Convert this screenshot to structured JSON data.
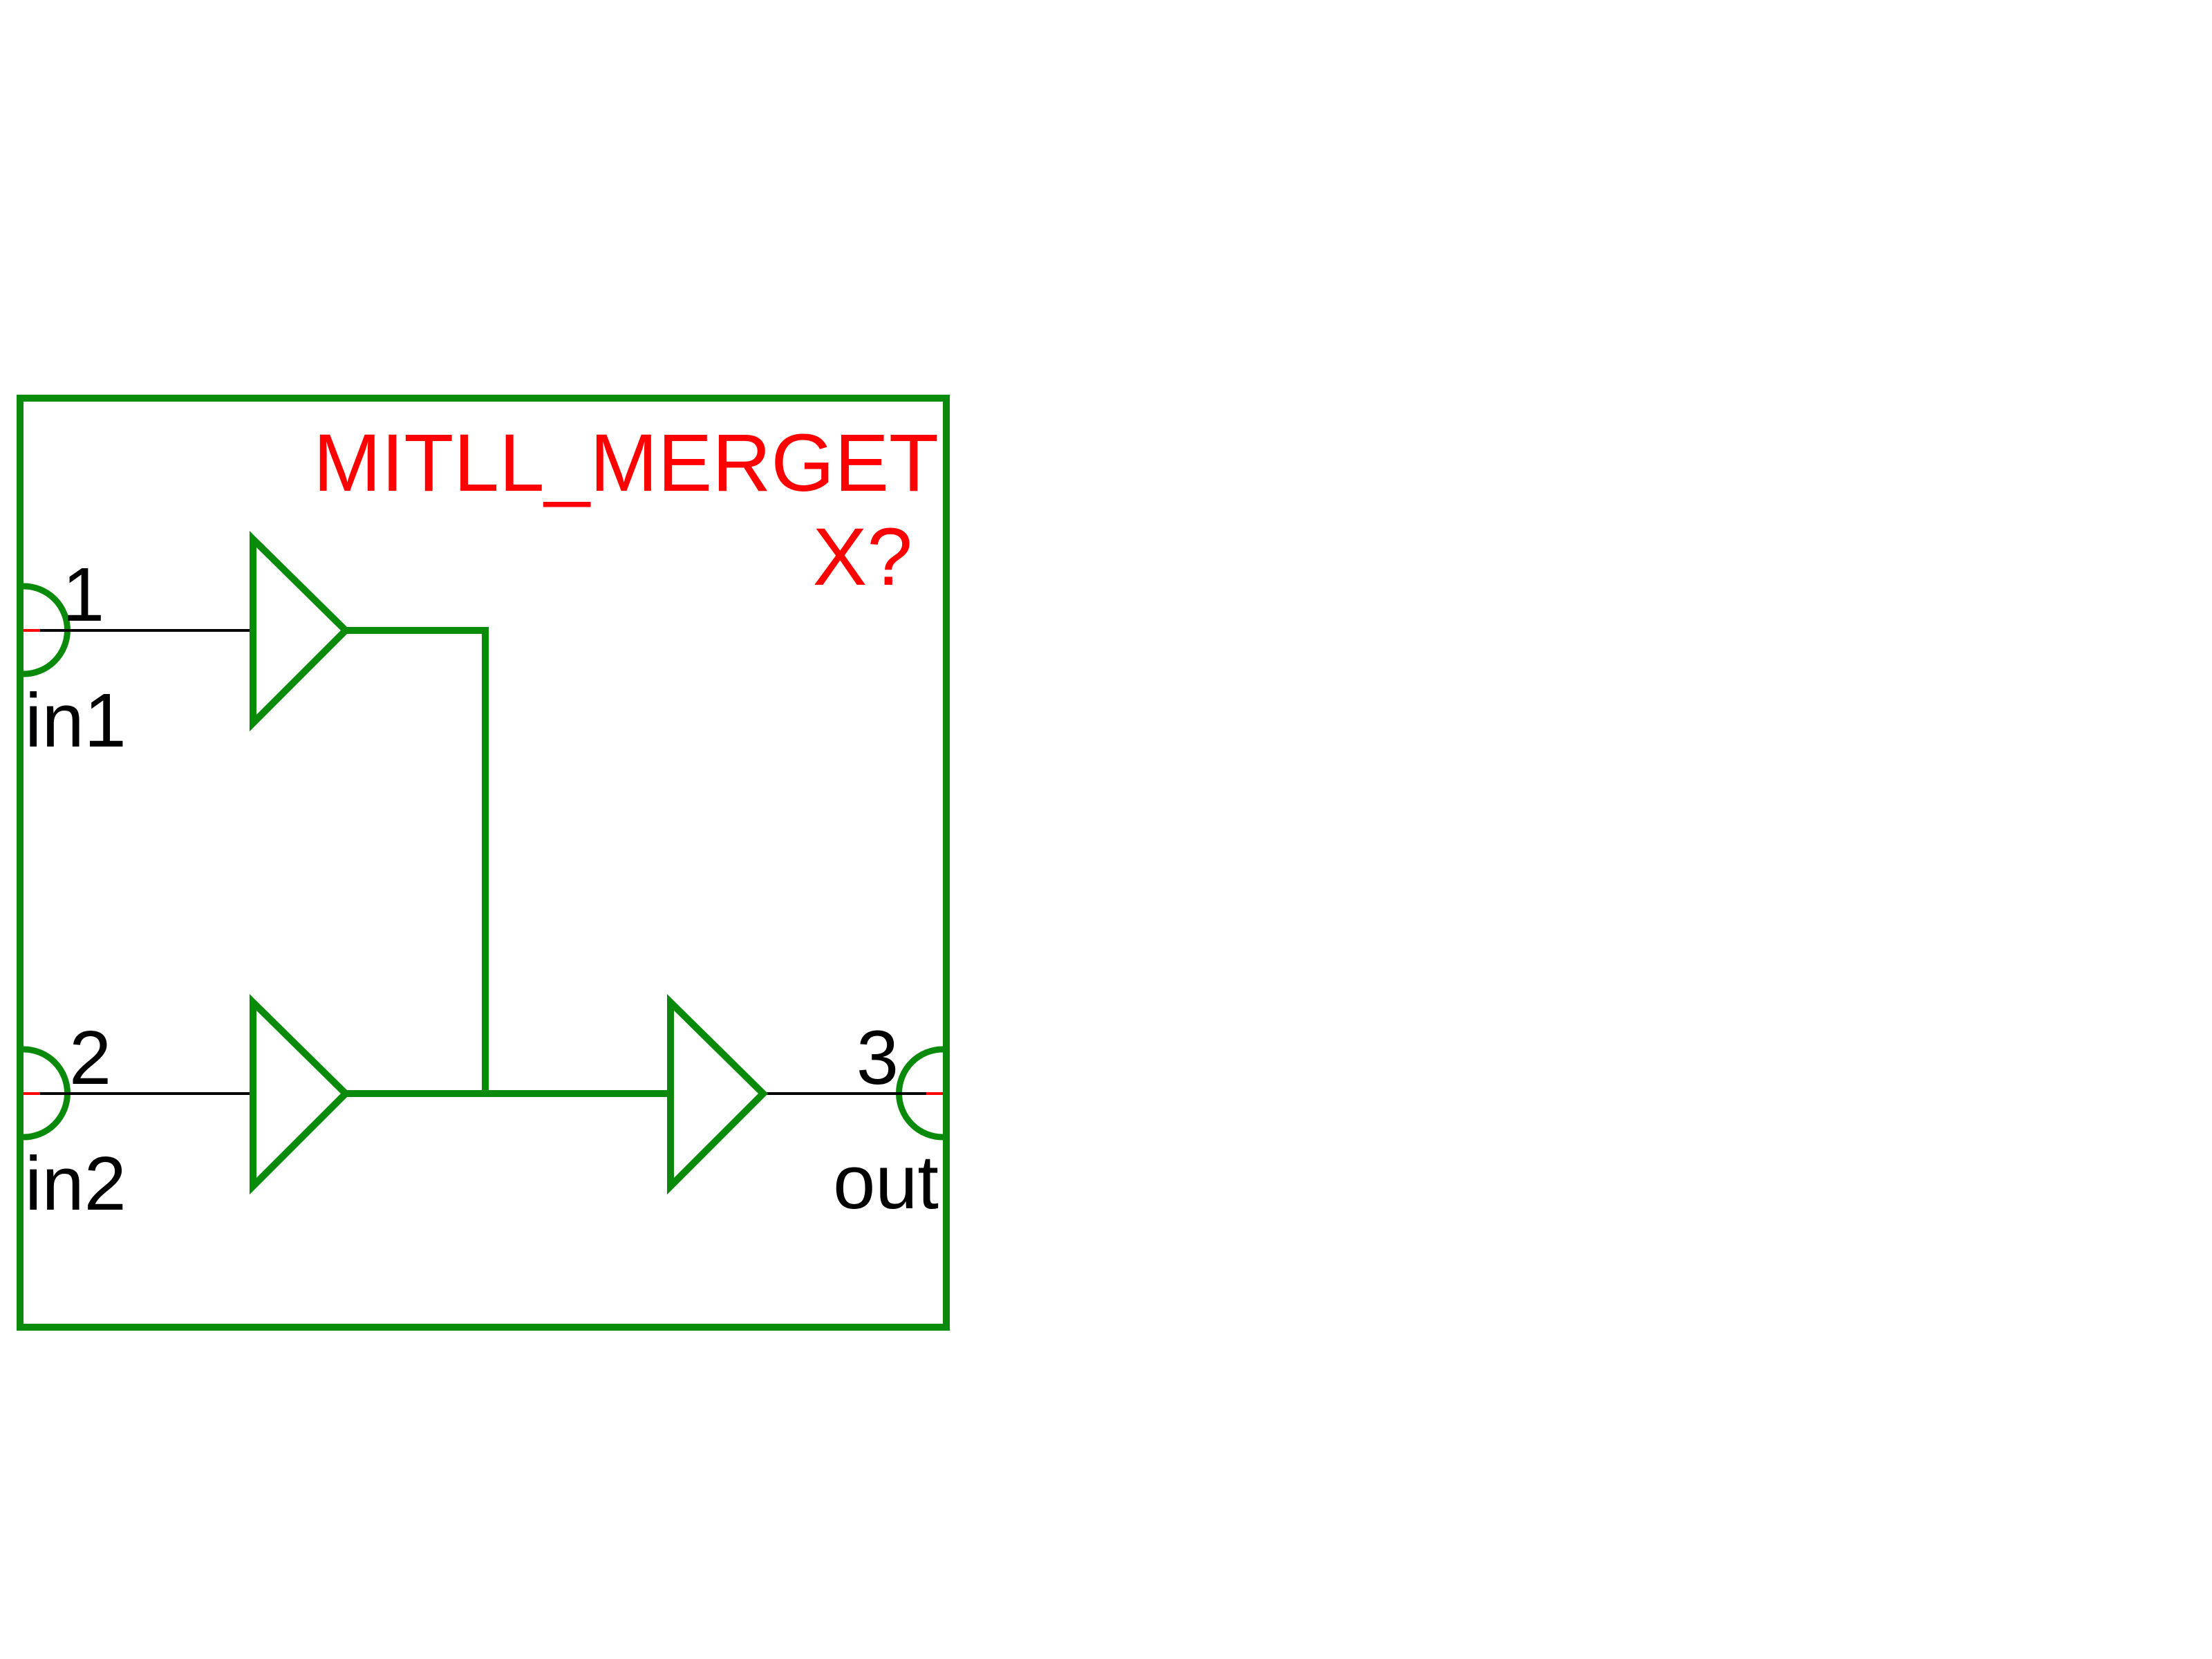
{
  "symbol": {
    "name": "MITLL_MERGET",
    "reference": "X?"
  },
  "pins": [
    {
      "number": "1",
      "name": "in1",
      "side": "left"
    },
    {
      "number": "2",
      "name": "in2",
      "side": "left"
    },
    {
      "number": "3",
      "name": "out",
      "side": "right"
    }
  ],
  "colors": {
    "body_outline": "#008000",
    "symbol_text": "#ff0000",
    "pin_text": "#000000",
    "wire": "#000000",
    "pin_stub": "#ff0000",
    "background": "#ffffff"
  }
}
